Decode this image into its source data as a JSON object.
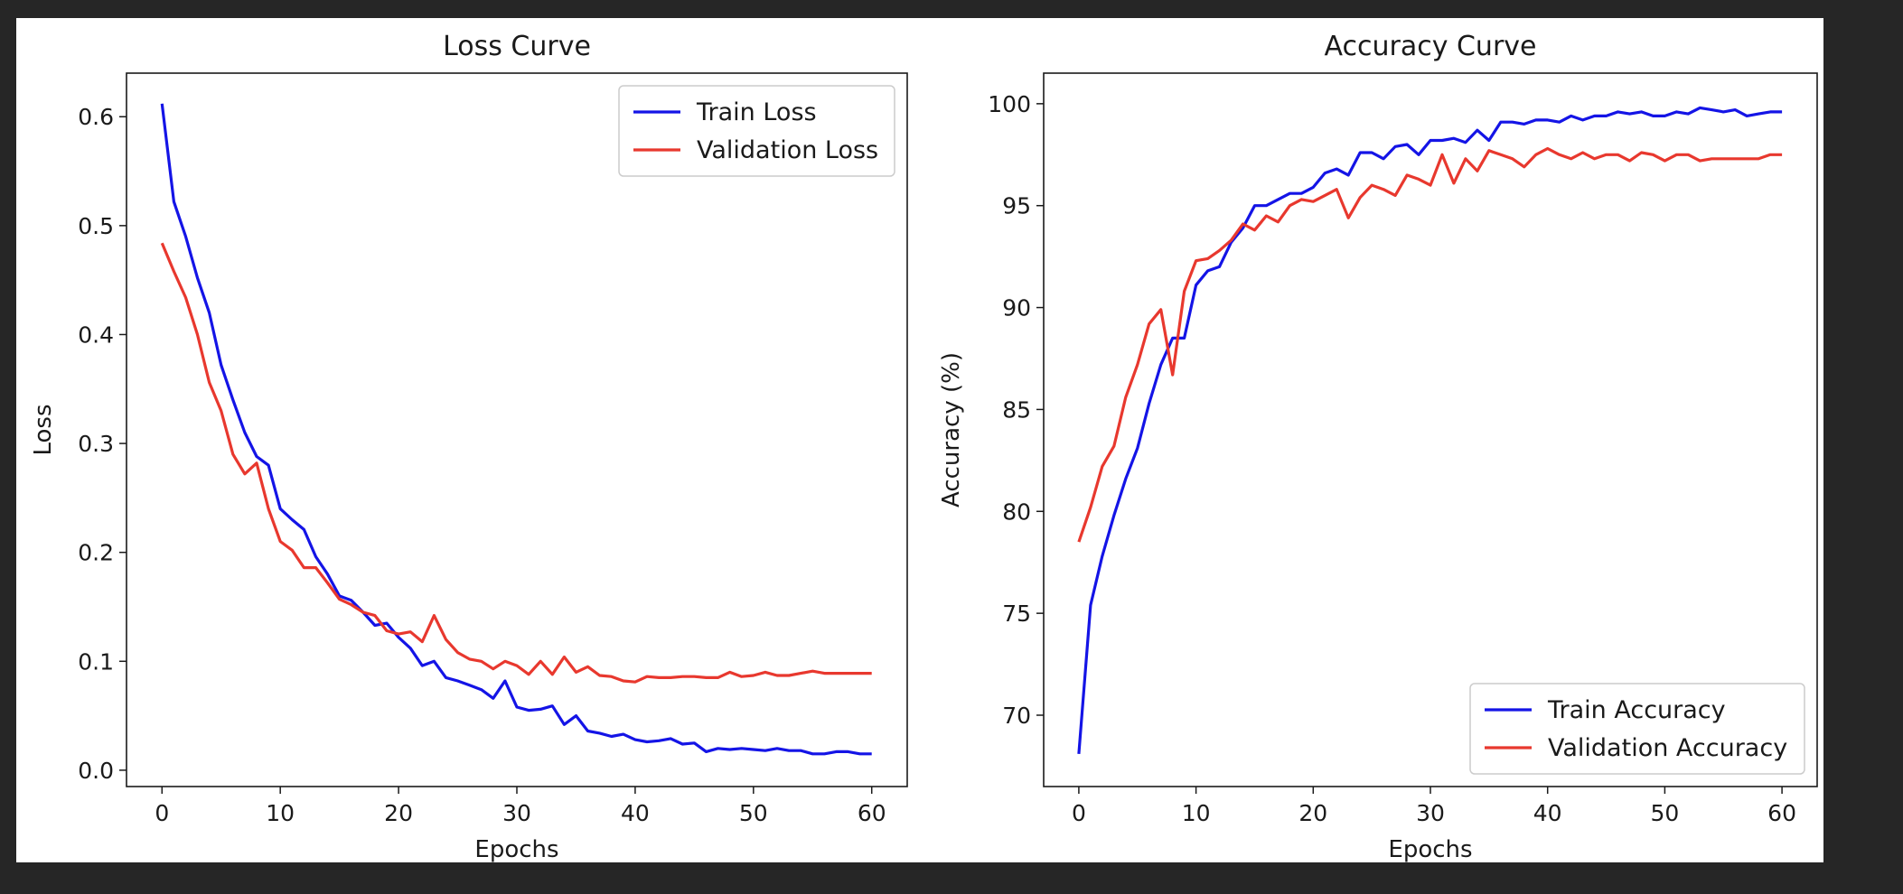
{
  "chart_data": [
    {
      "type": "line",
      "title": "Loss Curve",
      "xlabel": "Epochs",
      "ylabel": "Loss",
      "xlim": [
        -3.0,
        63.0
      ],
      "ylim": [
        -0.015,
        0.64
      ],
      "xticks": [
        0,
        10,
        20,
        30,
        40,
        50,
        60
      ],
      "yticks": [
        0.0,
        0.1,
        0.2,
        0.3,
        0.4,
        0.5,
        0.6
      ],
      "tick_decimals": 1,
      "grid": false,
      "legend_position": "upper-right",
      "series": [
        {
          "name": "Train Loss",
          "color": "#1414e6",
          "x": [
            0,
            1,
            2,
            3,
            4,
            5,
            6,
            7,
            8,
            9,
            10,
            11,
            12,
            13,
            14,
            15,
            16,
            17,
            18,
            19,
            20,
            21,
            22,
            23,
            24,
            25,
            26,
            27,
            28,
            29,
            30,
            31,
            32,
            33,
            34,
            35,
            36,
            37,
            38,
            39,
            40,
            41,
            42,
            43,
            44,
            45,
            46,
            47,
            48,
            49,
            50,
            51,
            52,
            53,
            54,
            55,
            56,
            57,
            58,
            59,
            60
          ],
          "y": [
            0.612,
            0.522,
            0.49,
            0.452,
            0.42,
            0.372,
            0.34,
            0.31,
            0.288,
            0.28,
            0.24,
            0.23,
            0.221,
            0.196,
            0.18,
            0.16,
            0.156,
            0.145,
            0.133,
            0.135,
            0.122,
            0.112,
            0.096,
            0.1,
            0.085,
            0.082,
            0.078,
            0.074,
            0.066,
            0.082,
            0.058,
            0.055,
            0.056,
            0.059,
            0.042,
            0.05,
            0.036,
            0.034,
            0.031,
            0.033,
            0.028,
            0.026,
            0.027,
            0.029,
            0.024,
            0.025,
            0.017,
            0.02,
            0.019,
            0.02,
            0.019,
            0.018,
            0.02,
            0.018,
            0.018,
            0.015,
            0.015,
            0.017,
            0.017,
            0.015,
            0.015
          ]
        },
        {
          "name": "Validation Loss",
          "color": "#e8382e",
          "x": [
            0,
            1,
            2,
            3,
            4,
            5,
            6,
            7,
            8,
            9,
            10,
            11,
            12,
            13,
            14,
            15,
            16,
            17,
            18,
            19,
            20,
            21,
            22,
            23,
            24,
            25,
            26,
            27,
            28,
            29,
            30,
            31,
            32,
            33,
            34,
            35,
            36,
            37,
            38,
            39,
            40,
            41,
            42,
            43,
            44,
            45,
            46,
            47,
            48,
            49,
            50,
            51,
            52,
            53,
            54,
            55,
            56,
            57,
            58,
            59,
            60
          ],
          "y": [
            0.484,
            0.458,
            0.434,
            0.4,
            0.356,
            0.33,
            0.29,
            0.272,
            0.282,
            0.24,
            0.21,
            0.202,
            0.186,
            0.186,
            0.172,
            0.157,
            0.152,
            0.145,
            0.142,
            0.128,
            0.125,
            0.127,
            0.118,
            0.142,
            0.12,
            0.108,
            0.102,
            0.1,
            0.093,
            0.1,
            0.096,
            0.088,
            0.1,
            0.088,
            0.104,
            0.09,
            0.095,
            0.087,
            0.086,
            0.082,
            0.081,
            0.086,
            0.085,
            0.085,
            0.086,
            0.086,
            0.085,
            0.085,
            0.09,
            0.086,
            0.087,
            0.09,
            0.087,
            0.087,
            0.089,
            0.091,
            0.089,
            0.089,
            0.089,
            0.089,
            0.089
          ]
        }
      ]
    },
    {
      "type": "line",
      "title": "Accuracy Curve",
      "xlabel": "Epochs",
      "ylabel": "Accuracy (%)",
      "xlim": [
        -3.0,
        63.0
      ],
      "ylim": [
        66.5,
        101.5
      ],
      "xticks": [
        0,
        10,
        20,
        30,
        40,
        50,
        60
      ],
      "yticks": [
        70,
        75,
        80,
        85,
        90,
        95,
        100
      ],
      "tick_decimals": 0,
      "grid": false,
      "legend_position": "lower-right",
      "series": [
        {
          "name": "Train Accuracy",
          "color": "#1414e6",
          "x": [
            0,
            1,
            2,
            3,
            4,
            5,
            6,
            7,
            8,
            9,
            10,
            11,
            12,
            13,
            14,
            15,
            16,
            17,
            18,
            19,
            20,
            21,
            22,
            23,
            24,
            25,
            26,
            27,
            28,
            29,
            30,
            31,
            32,
            33,
            34,
            35,
            36,
            37,
            38,
            39,
            40,
            41,
            42,
            43,
            44,
            45,
            46,
            47,
            48,
            49,
            50,
            51,
            52,
            53,
            54,
            55,
            56,
            57,
            58,
            59,
            60
          ],
          "y": [
            68.1,
            75.4,
            77.8,
            79.8,
            81.6,
            83.1,
            85.3,
            87.2,
            88.5,
            88.5,
            91.1,
            91.8,
            92.0,
            93.2,
            93.9,
            95.0,
            95.0,
            95.3,
            95.6,
            95.6,
            95.9,
            96.6,
            96.8,
            96.5,
            97.6,
            97.6,
            97.3,
            97.9,
            98.0,
            97.5,
            98.2,
            98.2,
            98.3,
            98.1,
            98.7,
            98.2,
            99.1,
            99.1,
            99.0,
            99.2,
            99.2,
            99.1,
            99.4,
            99.2,
            99.4,
            99.4,
            99.6,
            99.5,
            99.6,
            99.4,
            99.4,
            99.6,
            99.5,
            99.8,
            99.7,
            99.6,
            99.7,
            99.4,
            99.5,
            99.6,
            99.6
          ]
        },
        {
          "name": "Validation Accuracy",
          "color": "#e8382e",
          "x": [
            0,
            1,
            2,
            3,
            4,
            5,
            6,
            7,
            8,
            9,
            10,
            11,
            12,
            13,
            14,
            15,
            16,
            17,
            18,
            19,
            20,
            21,
            22,
            23,
            24,
            25,
            26,
            27,
            28,
            29,
            30,
            31,
            32,
            33,
            34,
            35,
            36,
            37,
            38,
            39,
            40,
            41,
            42,
            43,
            44,
            45,
            46,
            47,
            48,
            49,
            50,
            51,
            52,
            53,
            54,
            55,
            56,
            57,
            58,
            59,
            60
          ],
          "y": [
            78.5,
            80.2,
            82.2,
            83.2,
            85.6,
            87.2,
            89.2,
            89.9,
            86.7,
            90.8,
            92.3,
            92.4,
            92.8,
            93.3,
            94.1,
            93.8,
            94.5,
            94.2,
            95.0,
            95.3,
            95.2,
            95.5,
            95.8,
            94.4,
            95.4,
            96.0,
            95.8,
            95.5,
            96.5,
            96.3,
            96.0,
            97.5,
            96.1,
            97.3,
            96.7,
            97.7,
            97.5,
            97.3,
            96.9,
            97.5,
            97.8,
            97.5,
            97.3,
            97.6,
            97.3,
            97.5,
            97.5,
            97.2,
            97.6,
            97.5,
            97.2,
            97.5,
            97.5,
            97.2,
            97.3,
            97.3,
            97.3,
            97.3,
            97.3,
            97.5,
            97.5
          ]
        }
      ]
    }
  ]
}
